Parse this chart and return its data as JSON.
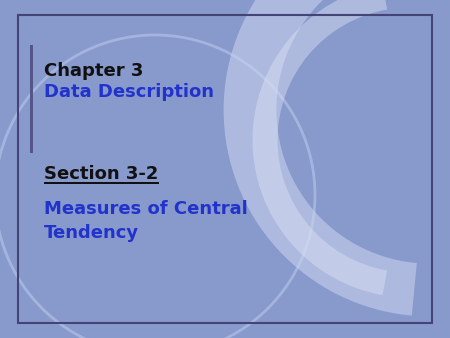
{
  "bg_color": "#8899cc",
  "border_color": "#444477",
  "chapter_text": "Chapter 3",
  "chapter_color": "#111111",
  "subtitle_text": "Data Description",
  "subtitle_color": "#2233cc",
  "section_text": "Section 3-2",
  "section_color": "#111111",
  "body_text": "Measures of Central\nTendency",
  "body_color": "#2233cc",
  "fig_width": 4.5,
  "fig_height": 3.38,
  "dpi": 100
}
